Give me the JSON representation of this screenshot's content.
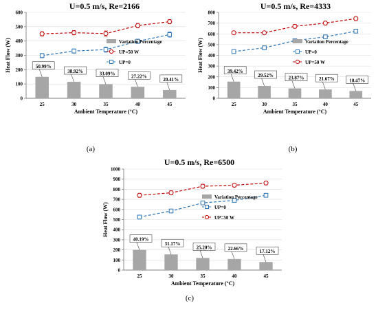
{
  "colors": {
    "bar": "#a6a6a6",
    "up0": "#2e75b6",
    "up50": "#c00000",
    "axis": "#808080"
  },
  "chart_data": [
    {
      "type": "bar+line",
      "panel": "(a)",
      "title": "U=0.5 m/s, Re=2166",
      "xlabel": "Ambient Temperature  (°C)",
      "ylabel": "Heat Flow (W)",
      "categories": [
        "25",
        "30",
        "35",
        "40",
        "45"
      ],
      "ylim": [
        0,
        600
      ],
      "yticks": [
        0,
        100,
        200,
        300,
        400,
        500,
        600
      ],
      "legend_order": [
        "bar",
        "UP=50 W",
        "UP=0"
      ],
      "legend_bar_label": "Variation Percentage",
      "bar_values": [
        150,
        115,
        98,
        80,
        58
      ],
      "bar_labels": [
        "50.99%",
        "38.92%",
        "33.09%",
        "27.22%",
        "20.41%"
      ],
      "series": [
        {
          "name": "UP=50 W",
          "key": "up50",
          "values": [
            450,
            458,
            452,
            508,
            535
          ],
          "errors": [
            15,
            15,
            18,
            15,
            15
          ]
        },
        {
          "name": "UP=0",
          "key": "up0",
          "values": [
            298,
            330,
            340,
            398,
            445
          ],
          "errors": [
            15,
            15,
            18,
            15,
            18
          ]
        }
      ],
      "legend_position": "center-right"
    },
    {
      "type": "bar+line",
      "panel": "(b)",
      "title": "U=0.5 m/s, Re=4333",
      "xlabel": "Ambient Temperature  (°C)",
      "ylabel": "Heat Flow (W)",
      "categories": [
        "25",
        "30",
        "35",
        "40",
        "45"
      ],
      "ylim": [
        0,
        800
      ],
      "yticks": [
        0,
        100,
        200,
        300,
        400,
        500,
        600,
        700,
        800
      ],
      "legend_order": [
        "bar",
        "UP=0",
        "UP=50 W"
      ],
      "legend_bar_label": "Variation Percentage",
      "bar_values": [
        155,
        115,
        92,
        82,
        68
      ],
      "bar_labels": [
        "39.42%",
        "29.52%",
        "23.87%",
        "21.67%",
        "18.47%"
      ],
      "series": [
        {
          "name": "UP=0",
          "key": "up0",
          "values": [
            435,
            470,
            537,
            572,
            625
          ],
          "errors": [
            15,
            18,
            15,
            18,
            15
          ]
        },
        {
          "name": "UP=50 W",
          "key": "up50",
          "values": [
            610,
            610,
            670,
            700,
            742
          ],
          "errors": [
            15,
            15,
            18,
            18,
            18
          ]
        }
      ],
      "legend_position": "center-right"
    },
    {
      "type": "bar+line",
      "panel": "(c)",
      "title": "U=0.5 m/s, Re=6500",
      "xlabel": "Ambient  Temperature  (°C)",
      "ylabel": "Heat Flow (W)",
      "categories": [
        "25",
        "30",
        "35",
        "40",
        "45"
      ],
      "ylim": [
        0,
        1000
      ],
      "yticks": [
        0,
        100,
        200,
        300,
        400,
        500,
        600,
        700,
        800,
        900,
        1000
      ],
      "legend_order": [
        "bar",
        "UP=0",
        "UP=50 W"
      ],
      "legend_bar_label": "Variation Percentage",
      "bar_values": [
        200,
        155,
        120,
        110,
        80
      ],
      "bar_labels": [
        "40.19%",
        "31.17%",
        "25.20%",
        "22.66%",
        "17.12%"
      ],
      "series": [
        {
          "name": "UP=0",
          "key": "up0",
          "values": [
            525,
            585,
            665,
            690,
            740
          ],
          "errors": [
            20,
            18,
            18,
            18,
            20
          ]
        },
        {
          "name": "UP=50 W",
          "key": "up50",
          "values": [
            740,
            765,
            830,
            840,
            862
          ],
          "errors": [
            20,
            20,
            20,
            18,
            18
          ]
        }
      ],
      "legend_position": "center-right"
    }
  ]
}
